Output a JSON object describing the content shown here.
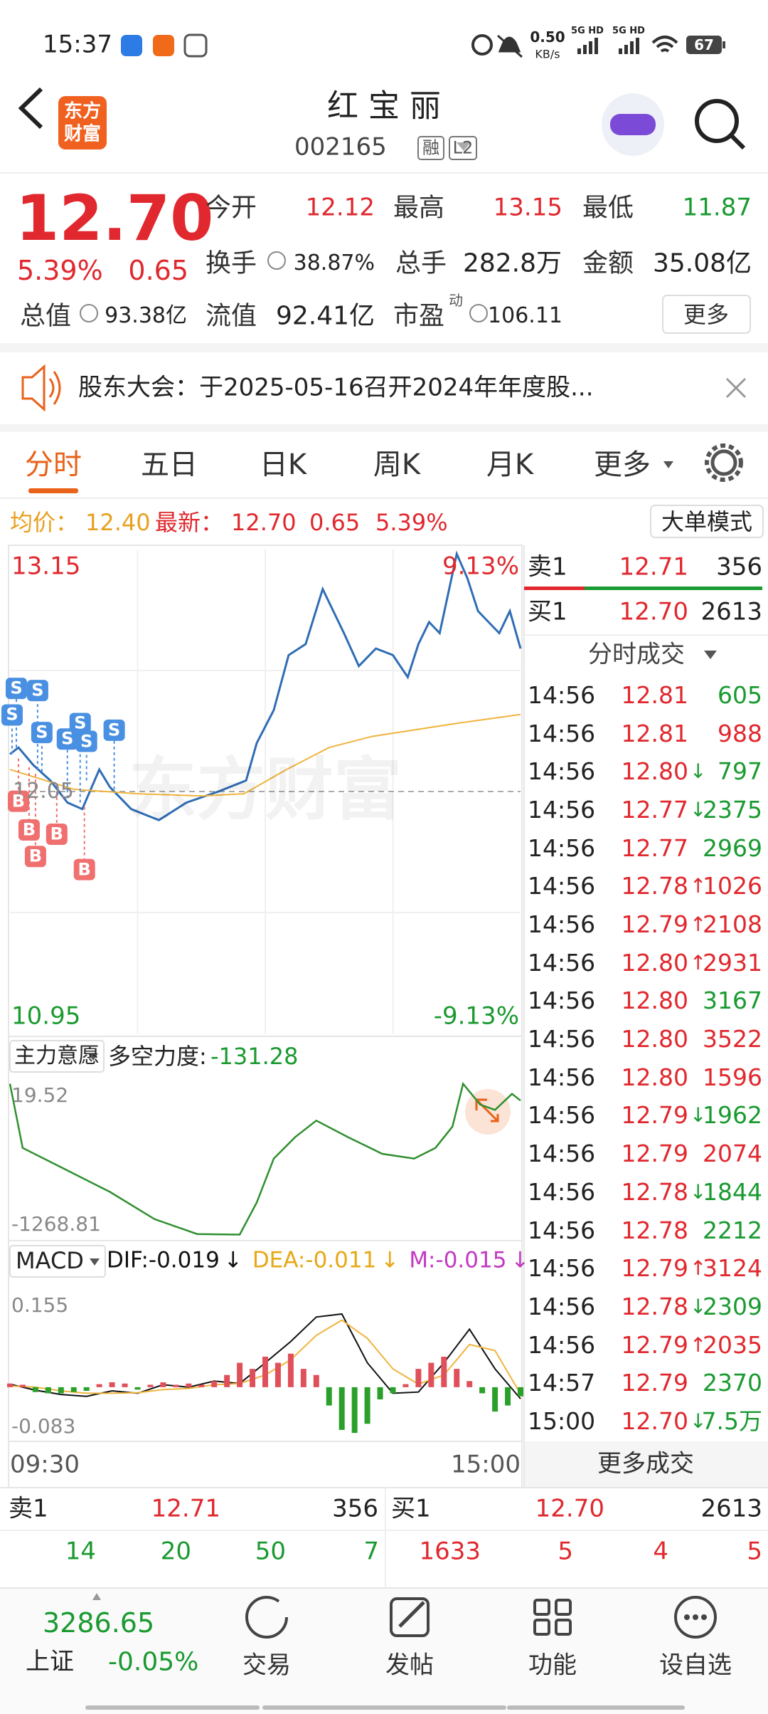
{
  "status_bar": {
    "time": "15:37",
    "net_speed": "0.50",
    "net_unit": "KB/s",
    "signal_1": "5G HD",
    "signal_2": "5G HD",
    "battery": "67"
  },
  "header": {
    "logo": [
      "东方",
      "财富"
    ],
    "title": "红 宝 丽",
    "code": "002165",
    "tag_margin": "融",
    "tag_level": "L2"
  },
  "quote": {
    "price": "12.70",
    "change_pct": "5.39%",
    "change": "0.65",
    "fields": [
      {
        "label": "今开",
        "value": "12.12",
        "color": "#e0282e"
      },
      {
        "label": "最高",
        "value": "13.15",
        "color": "#e0282e"
      },
      {
        "label": "最低",
        "value": "11.87",
        "color": "#1a9a30"
      },
      {
        "label": "换手",
        "value": "38.87%"
      },
      {
        "label": "总手",
        "value": "282.8万"
      },
      {
        "label": "金额",
        "value": "35.08亿"
      },
      {
        "label": "总值",
        "value": "93.38亿"
      },
      {
        "label": "流值",
        "value": "92.41亿"
      },
      {
        "label": "市盈",
        "value": "106.11",
        "sup": "动"
      }
    ],
    "more": "更多"
  },
  "notice": {
    "text": "股东大会：于2025-05-16召开2024年年度股..."
  },
  "tabs": {
    "items": [
      "分时",
      "五日",
      "日K",
      "周K",
      "月K",
      "更多"
    ],
    "active": 0
  },
  "summary": {
    "avg_label": "均价：",
    "avg": "12.40",
    "last_label": "最新：",
    "last": "12.70",
    "change": "0.65",
    "change_pct": "5.39%",
    "mode_button": "大单模式"
  },
  "chart_data": [
    {
      "type": "line",
      "watermark": "东方财富",
      "xlim": [
        0,
        240
      ],
      "ylim": [
        10.95,
        13.15
      ],
      "yticks": [
        10.95,
        13.15
      ],
      "y2lim": [
        -9.13,
        9.13
      ],
      "y2ticks": [
        {
          "value": -9.13,
          "label": "-9.13%"
        },
        {
          "value": 9.13,
          "label": "9.13%"
        }
      ],
      "reference_line": 12.05,
      "series": [
        {
          "color": "#2f6db5",
          "x": [
            0,
            4,
            11,
            19,
            27,
            34,
            42,
            47,
            57,
            70,
            83,
            98,
            111,
            116,
            124,
            131,
            139,
            147,
            152,
            157,
            164,
            172,
            180,
            187,
            192,
            197,
            202,
            210,
            215,
            220,
            225,
            230,
            235,
            240
          ],
          "values": [
            12.22,
            12.25,
            12.17,
            12.1,
            12.0,
            11.97,
            12.15,
            12.07,
            11.97,
            11.92,
            12.0,
            12.05,
            12.1,
            12.27,
            12.42,
            12.67,
            12.72,
            12.97,
            12.87,
            12.77,
            12.62,
            12.7,
            12.67,
            12.57,
            12.72,
            12.82,
            12.77,
            13.13,
            13.02,
            12.87,
            12.82,
            12.77,
            12.87,
            12.7
          ]
        },
        {
          "color": "#f0b43c",
          "x": [
            0,
            30,
            60,
            90,
            110,
            130,
            150,
            170,
            190,
            210,
            225,
            240
          ],
          "values": [
            12.15,
            12.06,
            12.04,
            12.03,
            12.04,
            12.15,
            12.25,
            12.3,
            12.33,
            12.36,
            12.38,
            12.4
          ]
        }
      ],
      "markers": [
        {
          "label": "S",
          "x": 1,
          "value": 12.22
        },
        {
          "label": "S",
          "x": 3,
          "value": 12.25
        },
        {
          "label": "S",
          "x": 13,
          "value": 12.15
        },
        {
          "label": "S",
          "x": 15,
          "value": 12.14
        },
        {
          "label": "S",
          "x": 27,
          "value": 12.02
        },
        {
          "label": "S",
          "x": 33,
          "value": 12.0
        },
        {
          "label": "S",
          "x": 36,
          "value": 12.1
        },
        {
          "label": "S",
          "x": 49,
          "value": 12.06
        },
        {
          "label": "B",
          "x": 4,
          "value": 12.2
        },
        {
          "label": "B",
          "x": 9,
          "value": 12.16
        },
        {
          "label": "B",
          "x": 12,
          "value": 12.13
        },
        {
          "label": "B",
          "x": 22,
          "value": 12.05
        },
        {
          "label": "B",
          "x": 35,
          "value": 11.98
        }
      ]
    },
    {
      "type": "line",
      "dropdown": "主力意愿",
      "label": "多空力度:",
      "value": -131.28,
      "color": "#2f8f2f",
      "xlim": [
        0,
        240
      ],
      "ylim": [
        -1268.81,
        19.52
      ],
      "yticks": [
        -1268.81,
        19.52
      ],
      "x": [
        0,
        6,
        27,
        47,
        68,
        88,
        108,
        116,
        124,
        134,
        144,
        159,
        175,
        190,
        200,
        208,
        213,
        221,
        228,
        236,
        240
      ],
      "values": [
        10,
        -530,
        -720,
        -900,
        -1130,
        -1255,
        -1260,
        -990,
        -620,
        -440,
        -300,
        -440,
        -580,
        -620,
        -530,
        -350,
        10,
        -165,
        -210,
        -75,
        -131.28
      ]
    },
    {
      "type": "macd",
      "dropdown": "MACD",
      "xlim": [
        0,
        240
      ],
      "xticks": [
        {
          "value": 0,
          "label": "09:30"
        },
        {
          "value": 240,
          "label": "15:00"
        }
      ],
      "ylim": [
        -0.083,
        0.155
      ],
      "yticks": [
        -0.083,
        0.155
      ],
      "indicators": [
        {
          "label": "DIF:",
          "value": -0.019,
          "arrow": "↓",
          "color": "#111111"
        },
        {
          "label": "DEA:",
          "value": -0.011,
          "arrow": "↓",
          "color": "#e6a817"
        },
        {
          "label": "M:",
          "value": -0.015,
          "arrow": "↓",
          "color": "#c23ac2"
        }
      ],
      "series": [
        {
          "kind": "line",
          "color": "#111111",
          "x": [
            0,
            12,
            24,
            36,
            48,
            60,
            72,
            84,
            96,
            108,
            120,
            132,
            144,
            156,
            168,
            180,
            192,
            204,
            216,
            228,
            240
          ],
          "values": [
            0.005,
            -0.005,
            -0.012,
            -0.015,
            -0.006,
            -0.01,
            0.004,
            0.0,
            0.01,
            0.006,
            0.04,
            0.075,
            0.115,
            0.12,
            0.04,
            -0.01,
            -0.008,
            0.04,
            0.095,
            0.03,
            -0.019
          ]
        },
        {
          "kind": "line",
          "color": "#f0b43c",
          "x": [
            0,
            12,
            24,
            36,
            48,
            60,
            72,
            84,
            96,
            108,
            120,
            132,
            144,
            156,
            168,
            180,
            192,
            204,
            216,
            228,
            240
          ],
          "values": [
            0.002,
            0.0,
            -0.006,
            -0.01,
            -0.01,
            -0.009,
            -0.004,
            -0.002,
            0.004,
            0.006,
            0.02,
            0.045,
            0.085,
            0.11,
            0.08,
            0.03,
            0.005,
            0.02,
            0.07,
            0.06,
            -0.011
          ]
        },
        {
          "kind": "bar",
          "up_color": "#e0505a",
          "down_color": "#2aa02a",
          "x": [
            0,
            6,
            12,
            18,
            24,
            30,
            36,
            42,
            48,
            54,
            60,
            66,
            72,
            78,
            84,
            90,
            96,
            102,
            108,
            114,
            120,
            126,
            132,
            138,
            144,
            150,
            156,
            162,
            168,
            174,
            180,
            186,
            192,
            198,
            204,
            210,
            216,
            222,
            228,
            234,
            240
          ],
          "values": [
            0.006,
            0.004,
            -0.008,
            -0.01,
            -0.01,
            -0.008,
            -0.006,
            0.005,
            0.008,
            0.006,
            -0.004,
            0.004,
            0.008,
            0.004,
            0.006,
            0.004,
            0.01,
            0.02,
            0.04,
            0.03,
            0.05,
            0.04,
            0.055,
            0.03,
            0.02,
            -0.03,
            -0.07,
            -0.075,
            -0.06,
            -0.02,
            -0.01,
            0.005,
            0.03,
            0.04,
            0.05,
            0.03,
            0.01,
            -0.01,
            -0.04,
            -0.03,
            -0.015
          ]
        }
      ]
    }
  ],
  "book_top": {
    "ask": {
      "label": "卖1",
      "price": "12.71",
      "volume": "356"
    },
    "bid": {
      "label": "买1",
      "price": "12.70",
      "volume": "2613"
    }
  },
  "trades": {
    "title": "分时成交",
    "more": "更多成交",
    "rows": [
      {
        "time": "14:56",
        "price": "12.81",
        "volume": "605",
        "color": "#1a9a30"
      },
      {
        "time": "14:56",
        "price": "12.81",
        "volume": "988",
        "color": "#e0282e"
      },
      {
        "time": "14:56",
        "price": "12.80",
        "dir": "↓",
        "volume": "797",
        "color": "#1a9a30"
      },
      {
        "time": "14:56",
        "price": "12.77",
        "dir": "↓",
        "volume": "2375",
        "color": "#1a9a30"
      },
      {
        "time": "14:56",
        "price": "12.77",
        "volume": "2969",
        "color": "#1a9a30"
      },
      {
        "time": "14:56",
        "price": "12.78",
        "dir": "↑",
        "volume": "1026",
        "color": "#e0282e"
      },
      {
        "time": "14:56",
        "price": "12.79",
        "dir": "↑",
        "volume": "2108",
        "color": "#e0282e"
      },
      {
        "time": "14:56",
        "price": "12.80",
        "dir": "↑",
        "volume": "2931",
        "color": "#e0282e"
      },
      {
        "time": "14:56",
        "price": "12.80",
        "volume": "3167",
        "color": "#1a9a30"
      },
      {
        "time": "14:56",
        "price": "12.80",
        "volume": "3522",
        "color": "#e0282e"
      },
      {
        "time": "14:56",
        "price": "12.80",
        "volume": "1596",
        "color": "#e0282e"
      },
      {
        "time": "14:56",
        "price": "12.79",
        "dir": "↓",
        "volume": "1962",
        "color": "#1a9a30"
      },
      {
        "time": "14:56",
        "price": "12.79",
        "volume": "2074",
        "color": "#e0282e"
      },
      {
        "time": "14:56",
        "price": "12.78",
        "dir": "↓",
        "volume": "1844",
        "color": "#1a9a30"
      },
      {
        "time": "14:56",
        "price": "12.78",
        "volume": "2212",
        "color": "#1a9a30"
      },
      {
        "time": "14:56",
        "price": "12.79",
        "dir": "↑",
        "volume": "3124",
        "color": "#e0282e"
      },
      {
        "time": "14:56",
        "price": "12.78",
        "dir": "↓",
        "volume": "2309",
        "color": "#1a9a30"
      },
      {
        "time": "14:56",
        "price": "12.79",
        "dir": "↑",
        "volume": "2035",
        "color": "#e0282e"
      },
      {
        "time": "14:57",
        "price": "12.79",
        "volume": "2370",
        "color": "#1a9a30"
      },
      {
        "time": "15:00",
        "price": "12.70",
        "dir": "↓",
        "volume": "7.5万",
        "color": "#1a9a30"
      }
    ]
  },
  "book_bottom": {
    "ask": {
      "label": "卖1",
      "price": "12.71",
      "volume": "356",
      "levels": [
        "14",
        "20",
        "50",
        "7"
      ]
    },
    "bid": {
      "label": "买1",
      "price": "12.70",
      "volume": "2613",
      "levels": [
        "1633",
        "5",
        "4",
        "5"
      ]
    }
  },
  "nav": {
    "index": {
      "value": "3286.65",
      "name": "上证",
      "change": "-0.05%"
    },
    "items": [
      "交易",
      "发帖",
      "功能",
      "设自选"
    ]
  }
}
